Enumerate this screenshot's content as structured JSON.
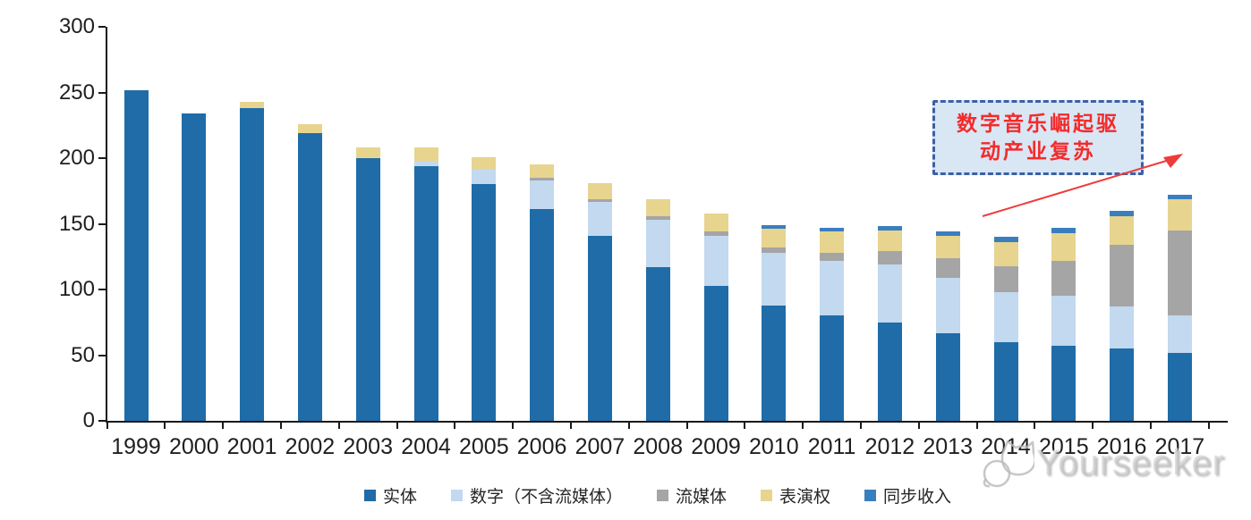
{
  "chart_data": {
    "type": "bar",
    "stacked": true,
    "title": "",
    "xlabel": "",
    "ylabel": "",
    "categories": [
      "1999",
      "2000",
      "2001",
      "2002",
      "2003",
      "2004",
      "2005",
      "2006",
      "2007",
      "2008",
      "2009",
      "2010",
      "2011",
      "2012",
      "2013",
      "2014",
      "2015",
      "2016",
      "2017"
    ],
    "series": [
      {
        "name": "实体",
        "color": "#1F6CA8",
        "values": [
          252,
          234,
          238,
          219,
          200,
          194,
          180,
          161,
          141,
          117,
          103,
          88,
          80,
          75,
          67,
          60,
          57,
          55,
          52
        ]
      },
      {
        "name": "数字（不含流媒体）",
        "color": "#C2D9EF",
        "values": [
          0,
          0,
          0,
          0,
          0,
          4,
          12,
          22,
          26,
          36,
          38,
          40,
          42,
          44,
          42,
          38,
          38,
          32,
          28
        ]
      },
      {
        "name": "流媒体",
        "color": "#A5A5A5",
        "values": [
          0,
          0,
          0,
          0,
          0,
          0,
          0,
          2,
          2,
          3,
          3,
          4,
          6,
          10,
          15,
          20,
          27,
          47,
          65
        ]
      },
      {
        "name": "表演权",
        "color": "#E7D48F",
        "values": [
          0,
          0,
          5,
          7,
          8,
          10,
          9,
          10,
          12,
          13,
          14,
          14,
          16,
          16,
          17,
          18,
          21,
          22,
          24
        ]
      },
      {
        "name": "同步收入",
        "color": "#3B7EBE",
        "values": [
          0,
          0,
          0,
          0,
          0,
          0,
          0,
          0,
          0,
          0,
          0,
          3,
          3,
          3,
          3,
          4,
          4,
          4,
          3
        ]
      }
    ],
    "ylim": [
      0,
      300
    ],
    "yticks": [
      0,
      50,
      100,
      150,
      200,
      250,
      300
    ],
    "grid": false,
    "legend_position": "bottom",
    "axis_color": "#1a1a1a"
  },
  "annotation": {
    "line1": "数字音乐崛起驱",
    "line2": "动产业复苏",
    "text_color": "#F42A2A",
    "border_color": "#3A61A8",
    "fill_color": "#D9E6F4",
    "arrow_color": "#F03B3B"
  },
  "watermark": {
    "text": "Yourseeker",
    "color": "#BDBDBD"
  }
}
